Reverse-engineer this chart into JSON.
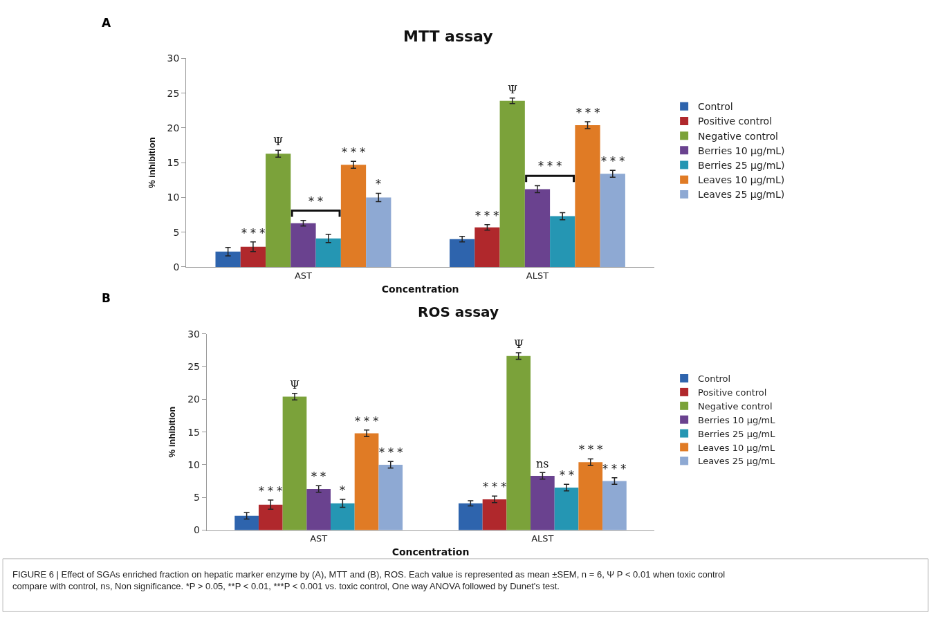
{
  "chart_data": [
    {
      "type": "bar",
      "title": "MTT assay",
      "xlabel": "Concentration",
      "ylabel": "% inhibition",
      "categories": [
        "AST",
        "ALST"
      ],
      "ylim": [
        0,
        30
      ],
      "yticks": [
        0,
        5,
        10,
        15,
        20,
        25,
        30
      ],
      "legend": "right",
      "series": [
        {
          "name": "Control",
          "color": "#2e64ad",
          "values": [
            2.2,
            4.0
          ],
          "errors": [
            0.6,
            0.4
          ],
          "value_labels": [
            null,
            null
          ]
        },
        {
          "name": "Positive control",
          "color": "#b0282c",
          "values": [
            2.9,
            5.7
          ],
          "errors": [
            0.7,
            0.4
          ],
          "value_labels": [
            "* * *",
            "* * *"
          ]
        },
        {
          "name": "Negative control",
          "color": "#7ba23a",
          "values": [
            16.3,
            23.9
          ],
          "errors": [
            0.5,
            0.4
          ],
          "value_labels": [
            "Ψ",
            "Ψ"
          ]
        },
        {
          "name": "Berries 10 µg/mL)",
          "color": "#6a428f",
          "values": [
            6.3,
            11.2
          ],
          "errors": [
            0.4,
            0.5
          ],
          "value_labels": [
            null,
            null
          ]
        },
        {
          "name": "Berries 25 µg/mL)",
          "color": "#2596b3",
          "values": [
            4.1,
            7.3
          ],
          "errors": [
            0.6,
            0.5
          ],
          "value_labels": [
            null,
            null
          ]
        },
        {
          "name": "Leaves 10 µg/mL)",
          "color": "#e07b25",
          "values": [
            14.7,
            20.4
          ],
          "errors": [
            0.5,
            0.5
          ],
          "value_labels": [
            "* * *",
            "* * *"
          ]
        },
        {
          "name": "Leaves 25 µg/mL)",
          "color": "#8ea9d3",
          "values": [
            10.0,
            13.4
          ],
          "errors": [
            0.6,
            0.5
          ],
          "value_labels": [
            "*",
            "* * *"
          ]
        }
      ],
      "annotations": [
        "A",
        "* *",
        "* * *"
      ]
    },
    {
      "type": "bar",
      "title": "ROS assay",
      "xlabel": "Concentration",
      "ylabel": "% inhibition",
      "categories": [
        "AST",
        "ALST"
      ],
      "ylim": [
        0,
        30
      ],
      "yticks": [
        0,
        5,
        10,
        15,
        20,
        25,
        30
      ],
      "legend": "right",
      "series": [
        {
          "name": "Control",
          "color": "#2e64ad",
          "values": [
            2.2,
            4.1
          ],
          "errors": [
            0.5,
            0.4
          ],
          "value_labels": [
            null,
            null
          ]
        },
        {
          "name": "Positive control",
          "color": "#b0282c",
          "values": [
            3.9,
            4.7
          ],
          "errors": [
            0.7,
            0.5
          ],
          "value_labels": [
            "* * *",
            "* * *"
          ]
        },
        {
          "name": "Negative control",
          "color": "#7ba23a",
          "values": [
            20.4,
            26.6
          ],
          "errors": [
            0.5,
            0.5
          ],
          "value_labels": [
            "Ψ",
            "Ψ"
          ]
        },
        {
          "name": "Berries 10 µg/mL",
          "color": "#6a428f",
          "values": [
            6.3,
            8.3
          ],
          "errors": [
            0.5,
            0.5
          ],
          "value_labels": [
            "* *",
            "ns"
          ]
        },
        {
          "name": "Berries 25 µg/mL",
          "color": "#2596b3",
          "values": [
            4.1,
            6.5
          ],
          "errors": [
            0.6,
            0.5
          ],
          "value_labels": [
            "*",
            "* *"
          ]
        },
        {
          "name": "Leaves 10 µg/mL",
          "color": "#e07b25",
          "values": [
            14.8,
            10.4
          ],
          "errors": [
            0.5,
            0.5
          ],
          "value_labels": [
            "* * *",
            "* * *"
          ]
        },
        {
          "name": "Leaves 25 µg/mL",
          "color": "#8ea9d3",
          "values": [
            10.0,
            7.5
          ],
          "errors": [
            0.5,
            0.5
          ],
          "value_labels": [
            "* * *",
            "* * *"
          ]
        }
      ],
      "annotations": [
        "B",
        "FIGURE 6 | Effect of SGAs enriched fraction on hepatic marker enzyme by (A), MTT and (B), ROS. Each value is represented as mean ±SEM, n = 6, Ψ P < 0.01 when toxic control compare with control, ns, Non significance. *P > 0.05, **P < 0.01, ***P < 0.001 vs. toxic control, One way ANOVA followed by Dunet's test."
      ]
    }
  ]
}
